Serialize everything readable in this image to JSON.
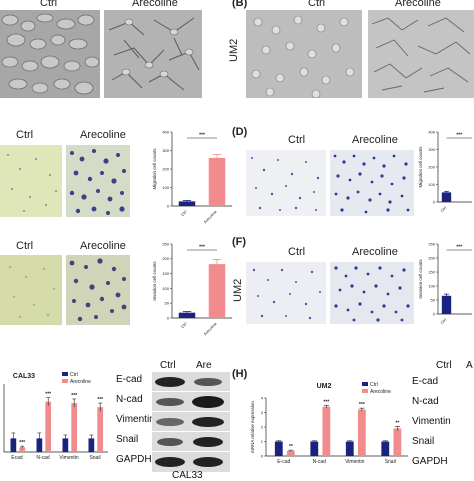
{
  "panels": {
    "A_ctrl_label": "Ctrl",
    "A_treat_label": "Arecoline",
    "B_letter": "(B)",
    "B_cell": "UM2",
    "B_ctrl_label": "Ctrl",
    "B_treat_label": "Arecoline",
    "C_ctrl_label": "Ctrl",
    "C_treat_label": "Arecoline",
    "D_letter": "(D)",
    "D_ctrl_label": "Ctrl",
    "D_treat_label": "Arecoline",
    "E_ctrl_label": "Ctrl",
    "E_treat_label": "Arecoline",
    "F_letter": "(F)",
    "F_cell": "UM2",
    "F_ctrl_label": "Ctrl",
    "F_treat_label": "Arecoline",
    "G_title": "CAL33",
    "H_letter": "(H)",
    "H_title": "UM2",
    "wb_left_ctrl": "Ctrl",
    "wb_left_treat": "Are",
    "wb_left_cell": "CAL33",
    "wb_right_ctrl": "Ctrl",
    "wb_right_treat": "A",
    "wb_markers": [
      "E-cad",
      "N-cad",
      "Vimentin",
      "Snail",
      "GAPDH"
    ]
  },
  "chart_data": [
    {
      "id": "C",
      "type": "bar",
      "categories": [
        "Ctrl",
        "Arecoline"
      ],
      "values": [
        25,
        260
      ],
      "errors": [
        5,
        18
      ],
      "ylabel": "Migration cell counts",
      "ylim": [
        0,
        400
      ],
      "yticks": [
        0,
        100,
        200,
        300,
        400
      ],
      "significance": "***",
      "colors": [
        "#1a237e",
        "#f28b8b"
      ]
    },
    {
      "id": "D",
      "type": "bar",
      "categories": [
        "Ctrl"
      ],
      "values": [
        55
      ],
      "errors": [
        6
      ],
      "ylabel": "Migration cell counts",
      "ylim": [
        0,
        400
      ],
      "yticks": [
        0,
        100,
        200,
        300,
        400
      ],
      "significance": "***",
      "colors": [
        "#1a237e"
      ]
    },
    {
      "id": "E",
      "type": "bar",
      "categories": [
        "Ctrl",
        "Arecoline"
      ],
      "values": [
        18,
        182
      ],
      "errors": [
        4,
        16
      ],
      "ylabel": "Invasion cell counts",
      "ylim": [
        0,
        250
      ],
      "yticks": [
        0,
        50,
        100,
        150,
        200,
        250
      ],
      "significance": "***",
      "colors": [
        "#1a237e",
        "#f28b8b"
      ]
    },
    {
      "id": "F",
      "type": "bar",
      "categories": [
        "Ctrl"
      ],
      "values": [
        65
      ],
      "errors": [
        6
      ],
      "ylabel": "Invasion cell counts",
      "ylim": [
        0,
        250
      ],
      "yticks": [
        0,
        50,
        100,
        150,
        200,
        250
      ],
      "significance": "***",
      "colors": [
        "#1a237e"
      ]
    },
    {
      "id": "G",
      "type": "bar",
      "title": "CAL33",
      "categories": [
        "Ecad",
        "N-cad",
        "Vimentin",
        "Snail"
      ],
      "series": [
        {
          "name": "Ctrl",
          "values": [
            1.0,
            1.0,
            1.0,
            1.0
          ],
          "errors": [
            0.4,
            0.4,
            0.25,
            0.25
          ],
          "color": "#1a237e"
        },
        {
          "name": "Arecoline",
          "values": [
            0.35,
            3.7,
            3.6,
            3.3
          ],
          "errors": [
            0.08,
            0.3,
            0.3,
            0.3
          ],
          "color": "#f28b8b"
        }
      ],
      "significance": [
        "***",
        "***",
        "***",
        "***"
      ],
      "ylim": [
        0,
        5
      ],
      "legend": "top-right"
    },
    {
      "id": "H",
      "type": "bar",
      "title": "UM2",
      "categories": [
        "E-cad",
        "N-cad",
        "Vimentin",
        "Snail"
      ],
      "series": [
        {
          "name": "Ctrl",
          "values": [
            1.0,
            1.0,
            1.0,
            1.0
          ],
          "errors": [
            0.05,
            0.05,
            0.05,
            0.05
          ],
          "color": "#1a237e"
        },
        {
          "name": "Arecoline",
          "values": [
            0.35,
            3.4,
            3.2,
            1.9
          ],
          "errors": [
            0.05,
            0.1,
            0.1,
            0.15
          ],
          "color": "#f28b8b"
        }
      ],
      "significance": [
        "**",
        "***",
        "***",
        "**"
      ],
      "ylabel": "mRNA relative expression",
      "ylim": [
        0,
        4
      ],
      "yticks": [
        0,
        1,
        2,
        3,
        4
      ],
      "legend": "top-right"
    }
  ]
}
